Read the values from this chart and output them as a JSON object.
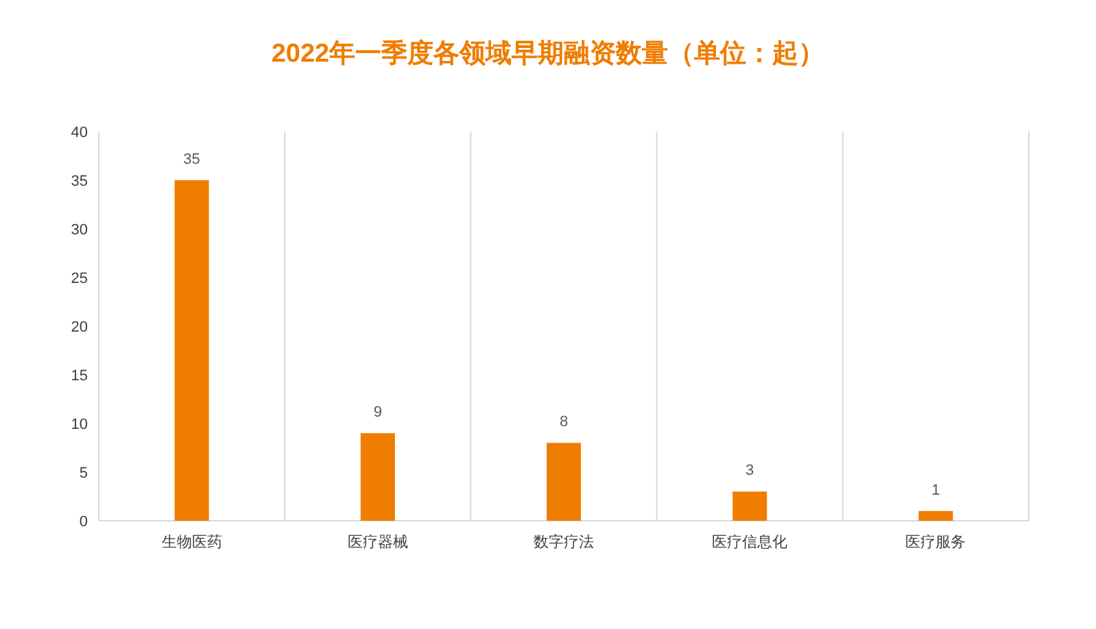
{
  "chart_data": {
    "type": "bar",
    "title": "2022年一季度各领域早期融资数量（单位：起）",
    "categories": [
      "生物医药",
      "医疗器械",
      "数字疗法",
      "医疗信息化",
      "医疗服务"
    ],
    "values": [
      35,
      9,
      8,
      3,
      1
    ],
    "color": "#ee7d00",
    "ylim": [
      0,
      40
    ],
    "yticks": [
      0,
      5,
      10,
      15,
      20,
      25,
      30,
      35,
      40
    ],
    "grid": "x",
    "data_labels": true
  }
}
